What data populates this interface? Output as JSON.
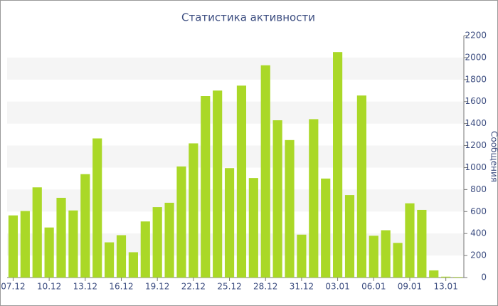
{
  "chart_data": {
    "type": "bar",
    "title": "Статистика активности",
    "y_label": "Сообщения",
    "categories": [
      "07.12",
      null,
      null,
      "10.12",
      null,
      null,
      "13.12",
      null,
      null,
      "16.12",
      null,
      null,
      "19.12",
      null,
      null,
      "22.12",
      null,
      null,
      "25.12",
      null,
      null,
      "28.12",
      null,
      null,
      "31.12",
      null,
      null,
      "03.01",
      null,
      null,
      "06.01",
      null,
      null,
      "09.01",
      null,
      null,
      "13.01",
      null
    ],
    "values": [
      565,
      605,
      820,
      455,
      725,
      610,
      940,
      1265,
      320,
      385,
      230,
      510,
      640,
      680,
      1010,
      1220,
      1650,
      1700,
      995,
      1745,
      905,
      1930,
      1430,
      1250,
      390,
      1440,
      900,
      2050,
      750,
      1655,
      380,
      430,
      315,
      675,
      615,
      65,
      8,
      5
    ],
    "color": "#aad827",
    "ylim": [
      0,
      2200
    ],
    "yticks": [
      0,
      200,
      400,
      600,
      800,
      1000,
      1200,
      1400,
      1600,
      1800,
      2000,
      2200
    ],
    "grid": "bands",
    "band_color": "#f5f5f5",
    "y_axis_side": "right"
  }
}
